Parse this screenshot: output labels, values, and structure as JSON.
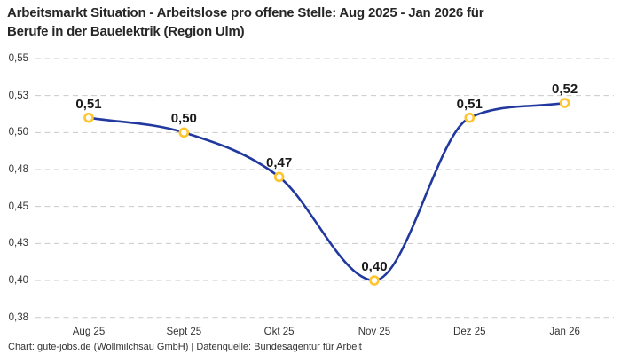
{
  "header": {
    "title_lines": [
      "Arbeitsmarkt Situation - Arbeitslose pro offene Stelle: Aug 2025 - Jan 2026 für",
      "Berufe in der Bauelektrik (Region Ulm)"
    ],
    "title_full": "Arbeitsmarkt Situation - Arbeitslose pro offene Stelle: Aug 2025 - Jan 2026 für Berufe in der Bauelektrik (Region Ulm)"
  },
  "footer": {
    "credit": "Chart: gute-jobs.de (Wollmilchsau GmbH) | Datenquelle: Bundesagentur für Arbeit"
  },
  "chart_data": {
    "type": "line",
    "title": "Arbeitsmarkt Situation - Arbeitslose pro offene Stelle: Aug 2025 - Jan 2026 für Berufe in der Bauelektrik (Region Ulm)",
    "categories": [
      "Aug 25",
      "Sept 25",
      "Okt 25",
      "Nov 25",
      "Dez 25",
      "Jan 26"
    ],
    "values": [
      0.51,
      0.5,
      0.47,
      0.4,
      0.51,
      0.52
    ],
    "point_labels": [
      "0,51",
      "0,50",
      "0,47",
      "0,40",
      "0,51",
      "0,52"
    ],
    "xlabel": "",
    "ylabel": "",
    "y_axis": {
      "min": 0.375,
      "max": 0.55,
      "ticks": [
        0.55,
        0.525,
        0.5,
        0.475,
        0.45,
        0.425,
        0.4,
        0.375
      ],
      "tick_labels": [
        "0,55",
        "0,53",
        "0,50",
        "0,48",
        "0,45",
        "0,43",
        "0,40",
        "0,38"
      ]
    },
    "grid": "horizontal-dashed",
    "legend": "none",
    "line_style": "smooth-monotone",
    "colors": {
      "line": "#21389e",
      "marker_stroke": "#ffc42e",
      "marker_fill": "#ffffff",
      "grid": "#c9c9c9",
      "title_text": "#262626",
      "tick_text": "#333333",
      "point_label_text": "#1a1a1a"
    }
  }
}
